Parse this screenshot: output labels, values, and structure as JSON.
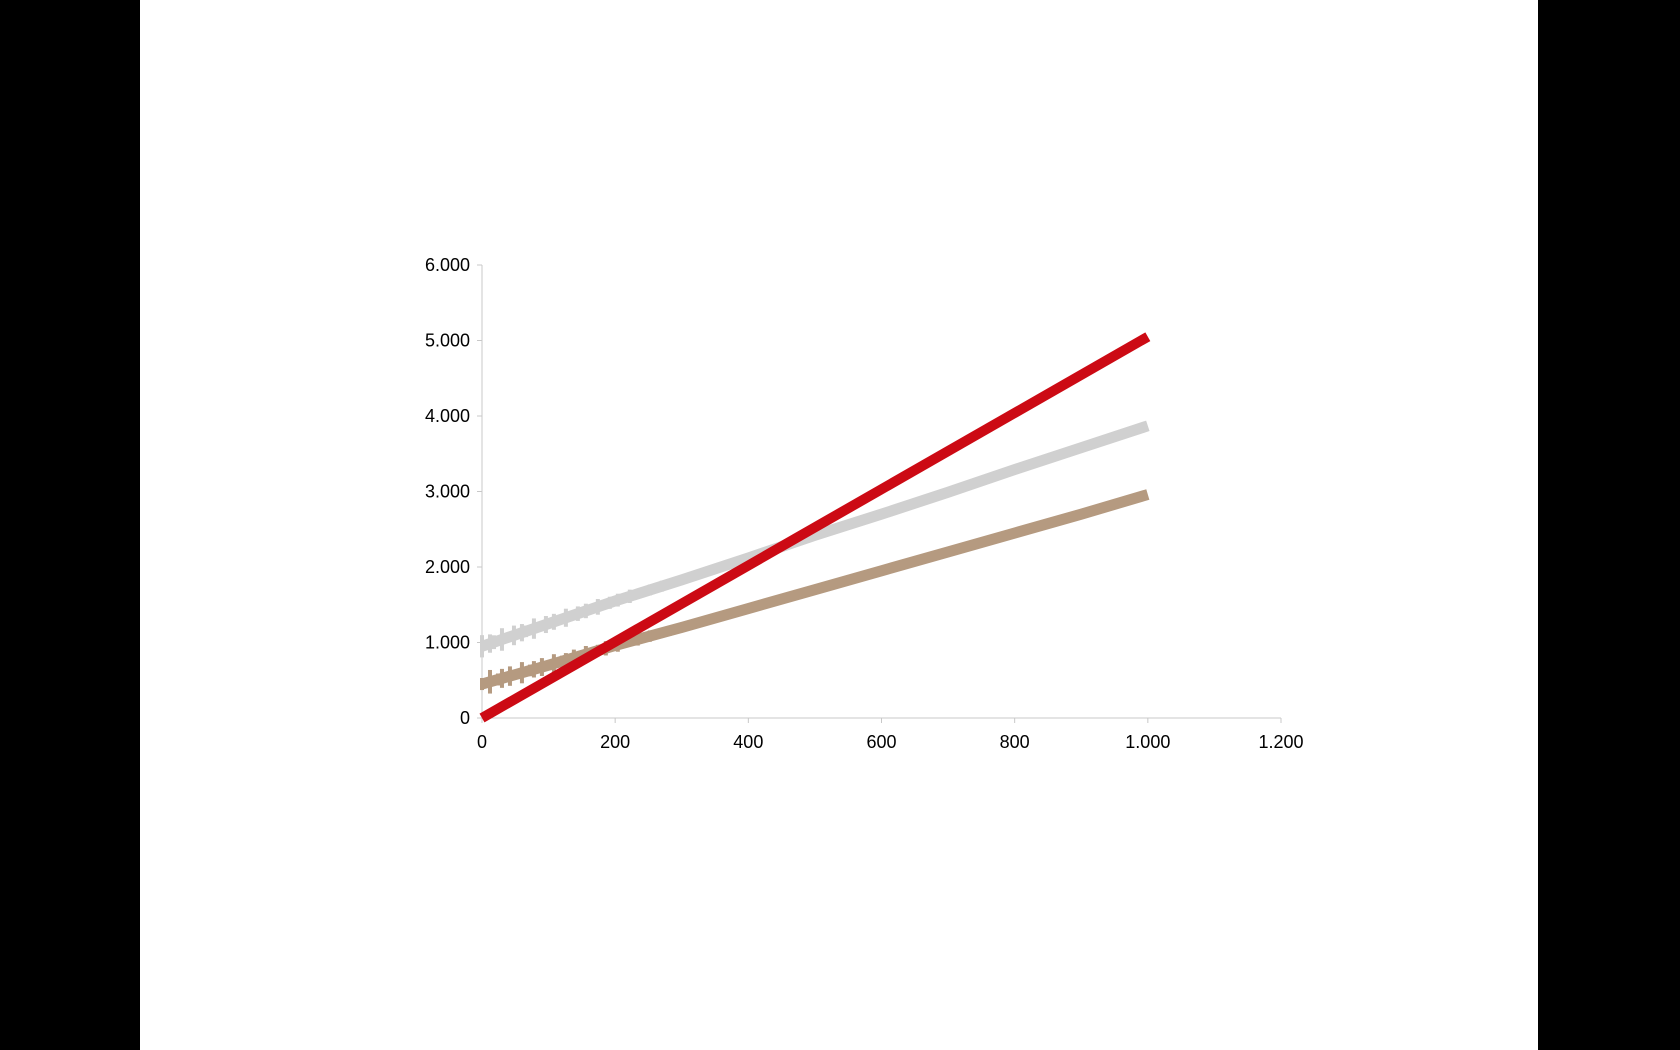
{
  "chart_data": {
    "type": "line",
    "xlim": [
      0,
      1200
    ],
    "ylim": [
      0,
      6000
    ],
    "x_ticks": [
      "0",
      "200",
      "400",
      "600",
      "800",
      "1.000",
      "1.200"
    ],
    "y_ticks": [
      "0",
      "1.000",
      "2.000",
      "3.000",
      "4.000",
      "5.000",
      "6.000"
    ],
    "grid": false,
    "legend": "none",
    "series": [
      {
        "color": "#b59a80",
        "x": [
          0,
          100,
          200,
          300,
          400,
          500,
          600,
          700,
          800,
          900,
          1000
        ],
        "values": [
          450,
          700,
          960,
          1200,
          1450,
          1700,
          1950,
          2200,
          2450,
          2700,
          2960
        ]
      },
      {
        "color": "#d0d0d0",
        "x": [
          0,
          100,
          200,
          300,
          400,
          500,
          600,
          700,
          800,
          900,
          1000
        ],
        "values": [
          950,
          1250,
          1550,
          1830,
          2120,
          2420,
          2700,
          2990,
          3290,
          3580,
          3870
        ]
      },
      {
        "color": "#cc0a14",
        "x": [
          0,
          1000
        ],
        "values": [
          0,
          5050
        ]
      }
    ]
  }
}
